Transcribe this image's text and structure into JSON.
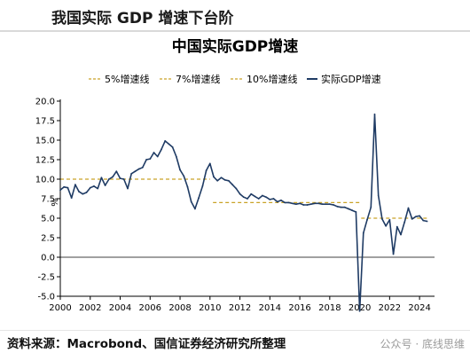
{
  "page": {
    "header": "我国实际 GDP 增速下台阶",
    "source": "资料来源：Macrobond、国信证券经济研究所整理",
    "watermark": "公众号 · 底线思维"
  },
  "colors": {
    "series_line": "#1f3b64",
    "reference_line": "#c9a227",
    "axis": "#000000",
    "zero_line": "#000000"
  },
  "chart_data": {
    "type": "line",
    "title": "中国实际GDP增速",
    "ylabel": "%",
    "xlabel": "",
    "xlim": [
      2000,
      2025
    ],
    "ylim": [
      -5,
      20
    ],
    "x_ticks": [
      2000,
      2002,
      2004,
      2006,
      2008,
      2010,
      2012,
      2014,
      2016,
      2018,
      2020,
      2022,
      2024
    ],
    "y_ticks": [
      "-5.0",
      "-2.5",
      "0.0",
      "2.5",
      "5.0",
      "7.5",
      "10.0",
      "12.5",
      "15.0",
      "17.5",
      "20.0"
    ],
    "legend_position": "top",
    "reference_lines": [
      {
        "name": "5%增速线",
        "value": 5,
        "x_start": 2020.1,
        "x_end": 2024.6
      },
      {
        "name": "7%增速线",
        "value": 7,
        "x_start": 2010.2,
        "x_end": 2020.0
      },
      {
        "name": "10%增速线",
        "value": 10,
        "x_start": 2000.0,
        "x_end": 2010.0
      }
    ],
    "series": [
      {
        "name": "实际GDP增速",
        "x": [
          2000.0,
          2000.25,
          2000.5,
          2000.75,
          2001.0,
          2001.25,
          2001.5,
          2001.75,
          2002.0,
          2002.25,
          2002.5,
          2002.75,
          2003.0,
          2003.25,
          2003.5,
          2003.75,
          2004.0,
          2004.25,
          2004.5,
          2004.75,
          2005.0,
          2005.25,
          2005.5,
          2005.75,
          2006.0,
          2006.25,
          2006.5,
          2006.75,
          2007.0,
          2007.25,
          2007.5,
          2007.75,
          2008.0,
          2008.25,
          2008.5,
          2008.75,
          2009.0,
          2009.25,
          2009.5,
          2009.75,
          2010.0,
          2010.25,
          2010.5,
          2010.75,
          2011.0,
          2011.25,
          2011.5,
          2011.75,
          2012.0,
          2012.25,
          2012.5,
          2012.75,
          2013.0,
          2013.25,
          2013.5,
          2013.75,
          2014.0,
          2014.25,
          2014.5,
          2014.75,
          2015.0,
          2015.25,
          2015.5,
          2015.75,
          2016.0,
          2016.25,
          2016.5,
          2016.75,
          2017.0,
          2017.25,
          2017.5,
          2017.75,
          2018.0,
          2018.25,
          2018.5,
          2018.75,
          2019.0,
          2019.25,
          2019.5,
          2019.75,
          2020.0,
          2020.25,
          2020.5,
          2020.75,
          2021.0,
          2021.25,
          2021.5,
          2021.75,
          2022.0,
          2022.25,
          2022.5,
          2022.75,
          2023.0,
          2023.25,
          2023.5,
          2023.75,
          2024.0,
          2024.25,
          2024.5
        ],
        "values": [
          8.6,
          9.0,
          8.9,
          7.6,
          9.3,
          8.4,
          8.1,
          8.3,
          8.9,
          9.1,
          8.8,
          10.2,
          9.2,
          10.0,
          10.3,
          11.0,
          10.1,
          10.0,
          8.8,
          10.7,
          11.0,
          11.3,
          11.5,
          12.5,
          12.6,
          13.4,
          12.9,
          13.8,
          14.9,
          14.5,
          14.1,
          12.9,
          11.2,
          10.4,
          9.0,
          7.1,
          6.2,
          7.6,
          9.1,
          11.1,
          12.0,
          10.3,
          9.8,
          10.2,
          9.9,
          9.8,
          9.3,
          8.8,
          8.1,
          7.7,
          7.5,
          8.1,
          7.8,
          7.5,
          7.9,
          7.7,
          7.4,
          7.5,
          7.1,
          7.3,
          7.0,
          7.0,
          6.9,
          6.8,
          6.9,
          6.7,
          6.7,
          6.8,
          6.9,
          6.9,
          6.8,
          6.8,
          6.8,
          6.7,
          6.5,
          6.4,
          6.4,
          6.2,
          6.0,
          5.8,
          -6.9,
          3.1,
          4.8,
          6.4,
          18.3,
          7.9,
          4.9,
          4.0,
          4.8,
          0.4,
          3.9,
          2.9,
          4.5,
          6.3,
          4.9,
          5.2,
          5.3,
          4.7,
          4.6
        ]
      }
    ]
  }
}
